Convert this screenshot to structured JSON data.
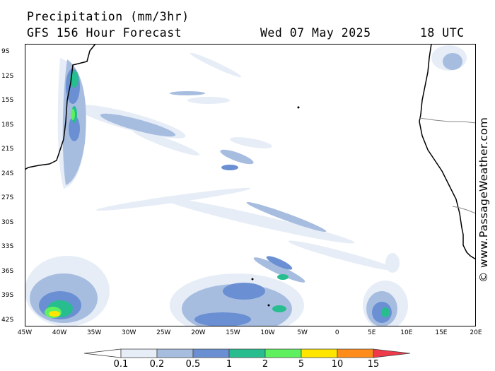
{
  "header": {
    "title": "Precipitation (mm/3hr)",
    "subtitle": "GFS 156 Hour Forecast",
    "date": "Wed 07 May 2025",
    "time": "18 UTC"
  },
  "credit": "© www.PassageWeather.com",
  "map": {
    "lat_labels": [
      "9S",
      "12S",
      "15S",
      "18S",
      "21S",
      "24S",
      "27S",
      "30S",
      "33S",
      "36S",
      "39S",
      "42S"
    ],
    "lon_labels": [
      "45W",
      "40W",
      "35W",
      "30W",
      "25W",
      "20W",
      "15W",
      "10W",
      "5W",
      "0",
      "5E",
      "10E",
      "15E",
      "20E"
    ],
    "extent": {
      "lon_min": -45,
      "lon_max": 20,
      "lat_min": -43,
      "lat_max": -8
    },
    "colors": {
      "land_outline": "#000000",
      "border": "#888888"
    }
  },
  "legend": {
    "labels": [
      "0.1",
      "0.2",
      "0.5",
      "1",
      "2",
      "5",
      "10",
      "15"
    ],
    "colors": [
      "#ffffff",
      "#e6edf7",
      "#a7bde0",
      "#6a90d3",
      "#27bd8e",
      "#5ff060",
      "#ffe500",
      "#ff8c1a",
      "#ee3a4a"
    ]
  }
}
